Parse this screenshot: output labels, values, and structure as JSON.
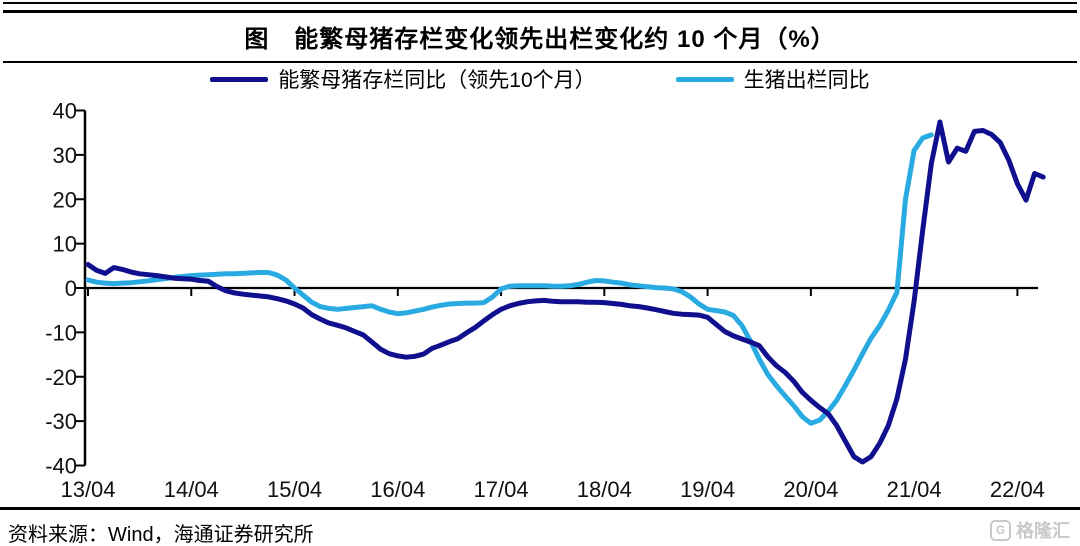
{
  "title": "图　能繁母猪存栏变化领先出栏变化约 10 个月（%）",
  "source": "资料来源：Wind，海通证券研究所",
  "watermark": {
    "logo_letter": "G",
    "text": "格隆汇"
  },
  "chart_data": {
    "type": "line",
    "title": "能繁母猪存栏变化领先出栏变化约 10 个月（%）",
    "x_tick_labels": [
      "13/04",
      "14/04",
      "15/04",
      "16/04",
      "17/04",
      "18/04",
      "19/04",
      "20/04",
      "21/04",
      "22/04"
    ],
    "y_ticks": [
      40,
      30,
      20,
      10,
      0,
      -10,
      -20,
      -30,
      -40
    ],
    "ylim": [
      -40,
      40
    ],
    "x_start": "2013/04",
    "frequency": "monthly",
    "grid": false,
    "legend_position": "top",
    "axis_color": "#000000",
    "series": [
      {
        "name": "能繁母猪存栏同比（领先10个月）",
        "color": "#10108e",
        "values": [
          5.3,
          4.0,
          3.3,
          4.6,
          4.2,
          3.6,
          3.2,
          3.0,
          2.8,
          2.5,
          2.2,
          2.1,
          2.0,
          1.7,
          1.5,
          0.3,
          -0.6,
          -1.1,
          -1.4,
          -1.6,
          -1.8,
          -2.0,
          -2.4,
          -2.9,
          -3.6,
          -4.5,
          -6.0,
          -7.0,
          -7.9,
          -8.4,
          -9.0,
          -9.8,
          -10.6,
          -12.2,
          -13.8,
          -14.8,
          -15.3,
          -15.6,
          -15.4,
          -14.9,
          -13.6,
          -12.9,
          -12.1,
          -11.4,
          -10.1,
          -8.9,
          -7.4,
          -6.0,
          -4.8,
          -4.0,
          -3.5,
          -3.1,
          -2.9,
          -2.8,
          -3.0,
          -3.1,
          -3.1,
          -3.1,
          -3.2,
          -3.2,
          -3.3,
          -3.5,
          -3.7,
          -4.0,
          -4.2,
          -4.5,
          -4.9,
          -5.3,
          -5.7,
          -5.9,
          -6.0,
          -6.1,
          -6.6,
          -8.2,
          -9.8,
          -10.8,
          -11.5,
          -12.2,
          -13.0,
          -15.5,
          -17.5,
          -19.0,
          -21.0,
          -23.5,
          -25.3,
          -26.9,
          -28.3,
          -31.0,
          -34.5,
          -38.0,
          -39.2,
          -38.0,
          -35.0,
          -31.0,
          -25.0,
          -16.0,
          -3.0,
          13.0,
          28.0,
          37.4,
          28.4,
          31.5,
          30.8,
          35.3,
          35.5,
          34.6,
          32.8,
          28.8,
          23.5,
          19.8,
          25.8,
          25.0
        ]
      },
      {
        "name": "生猪出栏同比",
        "color": "#29abe2",
        "values": [
          1.8,
          1.3,
          1.1,
          1.0,
          1.1,
          1.2,
          1.4,
          1.6,
          1.9,
          2.1,
          2.4,
          2.6,
          2.8,
          2.9,
          3.0,
          3.1,
          3.2,
          3.2,
          3.3,
          3.4,
          3.5,
          3.5,
          2.9,
          1.8,
          0.0,
          -1.6,
          -3.2,
          -4.2,
          -4.6,
          -4.8,
          -4.6,
          -4.4,
          -4.2,
          -4.0,
          -4.8,
          -5.4,
          -5.8,
          -5.6,
          -5.2,
          -4.8,
          -4.3,
          -3.9,
          -3.6,
          -3.5,
          -3.4,
          -3.4,
          -3.3,
          -2.0,
          -0.2,
          0.4,
          0.5,
          0.5,
          0.5,
          0.5,
          0.4,
          0.4,
          0.5,
          0.8,
          1.3,
          1.7,
          1.6,
          1.3,
          1.1,
          0.7,
          0.5,
          0.3,
          0.1,
          0.0,
          -0.2,
          -0.8,
          -2.0,
          -3.6,
          -4.8,
          -5.1,
          -5.4,
          -6.2,
          -8.5,
          -12.0,
          -16.0,
          -19.5,
          -22.0,
          -24.3,
          -26.5,
          -29.0,
          -30.5,
          -29.8,
          -27.8,
          -25.3,
          -22.0,
          -18.5,
          -14.8,
          -11.3,
          -8.5,
          -5.0,
          -1.0,
          20.0,
          31.0,
          33.8,
          34.5
        ]
      }
    ]
  }
}
